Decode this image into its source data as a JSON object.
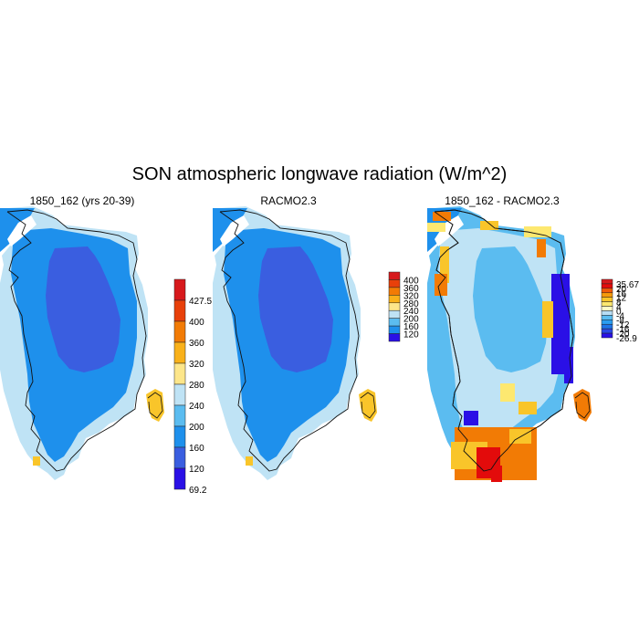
{
  "title": "SON atmospheric longwave radiation (W/m^2)",
  "panels": [
    {
      "title": "1850_162 (yrs 20-39)",
      "colorbar": {
        "labels": [
          "427.5",
          "400",
          "360",
          "320",
          "280",
          "240",
          "200",
          "160",
          "120",
          "69.2"
        ],
        "colors": [
          "#d7191c",
          "#e8400a",
          "#f27b05",
          "#f9b11a",
          "#fde68a",
          "#bfe3f5",
          "#5bbcf0",
          "#1e90ec",
          "#3a5ee0",
          "#2a10e6"
        ]
      }
    },
    {
      "title": "RACMO2.3",
      "colorbar": {
        "labels": [
          "400",
          "360",
          "320",
          "280",
          "240",
          "200",
          "160",
          "120"
        ],
        "colors": [
          "#d7191c",
          "#e8400a",
          "#f27b05",
          "#f9b11a",
          "#fde68a",
          "#bfe3f5",
          "#5bbcf0",
          "#1e90ec",
          "#2a10e6"
        ]
      }
    },
    {
      "title": "1850_162 - RACMO2.3",
      "colorbar": {
        "labels": [
          "35.67",
          "20",
          "16",
          "12",
          "8",
          "4",
          "0",
          "-4",
          "-8",
          "-12",
          "-16",
          "-20",
          "-26.9"
        ],
        "colors": [
          "#d7191c",
          "#e30b0b",
          "#f05a08",
          "#f59a0c",
          "#f9c52a",
          "#fde870",
          "#fffbc8",
          "#b7dcf3",
          "#5bbcf0",
          "#2a9df0",
          "#1e74e8",
          "#2a48e6",
          "#2a10e6"
        ]
      }
    }
  ],
  "colors": {
    "outer_ring": "#bfe3f5",
    "mid_ring": "#5bbcf0",
    "base": "#1e90ec",
    "interior": "#3a5ee0",
    "coast_yellow": "#f9c52a",
    "coast_orange": "#f27b05",
    "coast_red": "#e30b0b",
    "blue_dark": "#2a10e6",
    "pale_yellow": "#fde870"
  }
}
